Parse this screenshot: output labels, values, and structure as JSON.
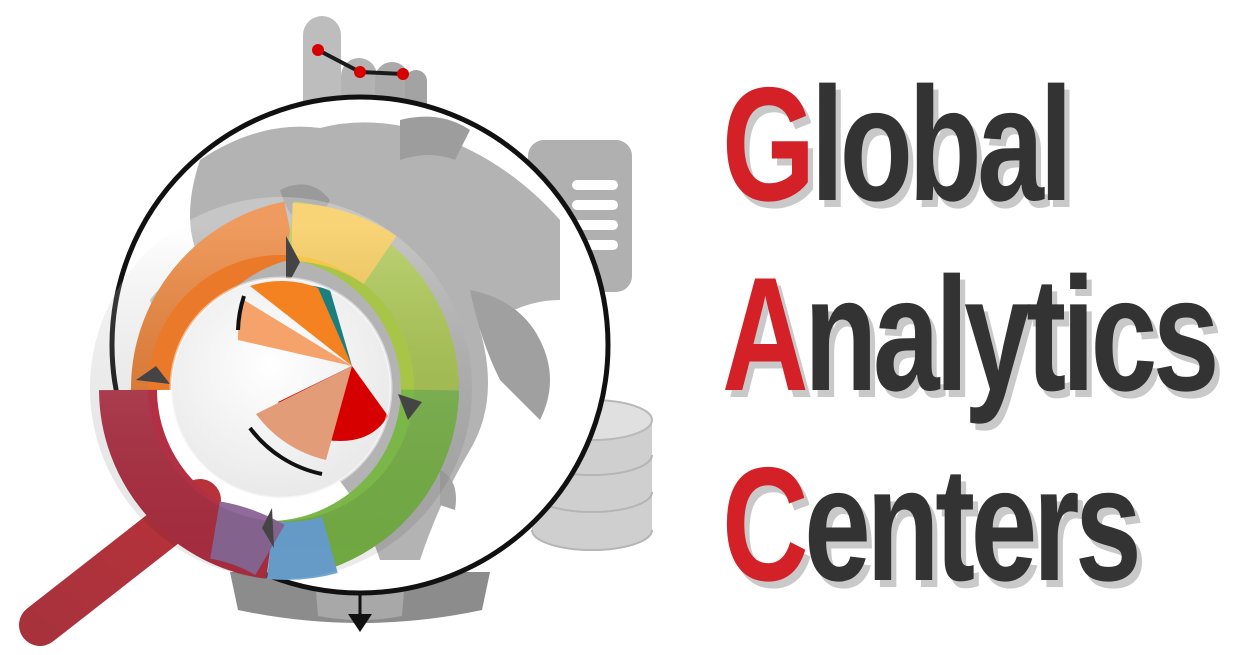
{
  "brand": {
    "words": [
      {
        "initial": "G",
        "rest": "lobal"
      },
      {
        "initial": "A",
        "rest": "nalytics"
      },
      {
        "initial": "C",
        "rest": "enters"
      }
    ],
    "colors": {
      "initial": "#d42027",
      "text": "#333333",
      "shadow": "#c9c9c9",
      "globe_land": "#b3b3b3",
      "handle": "#a8323c",
      "cycle_orange": "#f08a24",
      "cycle_yellow": "#f7c948",
      "cycle_green": "#7ab648",
      "cycle_blue": "#6fa8d8",
      "pie_red": "#d70000",
      "pie_orange": "#f58220",
      "pie_teal": "#1b7f7f"
    }
  },
  "icons": {
    "globe": "globe-icon",
    "magnifier": "magnifying-glass-icon",
    "cycle": "cycle-arrows-icon",
    "pie": "pie-chart-icon",
    "hand": "pointing-hand-icon",
    "document": "document-icon",
    "database": "database-icon",
    "arrow": "down-arrow-icon"
  }
}
